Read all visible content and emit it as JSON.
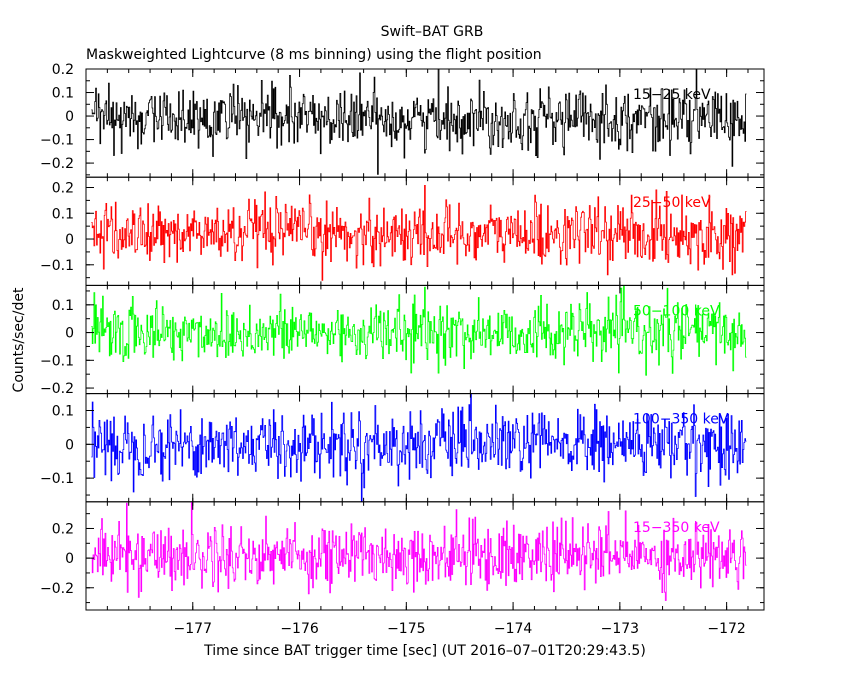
{
  "title": "Swift–BAT GRB",
  "subtitle": "Maskweighted Lightcurve (8 ms binning) using the flight position",
  "xlabel": "Time since BAT trigger time [sec] (UT 2016–07–01T20:29:43.5)",
  "ylabel": "Counts/sec/det",
  "chart_data": {
    "type": "line",
    "xlim": [
      -178.0,
      -171.65
    ],
    "x_ticks": [
      -177,
      -176,
      -175,
      -174,
      -173,
      -172
    ],
    "x_tick_labels": [
      "−177",
      "−176",
      "−175",
      "−174",
      "−173",
      "−172"
    ],
    "x_start": -177.95,
    "x_end": -171.82,
    "bin_width": 0.008,
    "series": [
      {
        "name": "15−25 keV",
        "color": "#000000",
        "ylim": [
          -0.26,
          0.2
        ],
        "y_ticks": [
          0.2,
          0.1,
          0,
          -0.1,
          -0.2
        ],
        "y_tick_labels": [
          "0.2",
          "0.1",
          "0",
          "−0.1",
          "−0.2"
        ],
        "noise_sigma": 0.065,
        "noise_offset": -0.01
      },
      {
        "name": "25−50 keV",
        "color": "#ff0000",
        "ylim": [
          -0.18,
          0.24
        ],
        "y_ticks": [
          0.2,
          0.1,
          0,
          -0.1
        ],
        "y_tick_labels": [
          "0.2",
          "0.1",
          "0",
          "−0.1"
        ],
        "noise_sigma": 0.06,
        "noise_offset": 0.02
      },
      {
        "name": "50−100 keV",
        "color": "#00ff00",
        "ylim": [
          -0.22,
          0.17
        ],
        "y_ticks": [
          0.1,
          0,
          -0.1,
          -0.2
        ],
        "y_tick_labels": [
          "0.1",
          "0",
          "−0.1",
          "−0.2"
        ],
        "noise_sigma": 0.055,
        "noise_offset": 0.0
      },
      {
        "name": "100−350 keV",
        "color": "#0000ff",
        "ylim": [
          -0.17,
          0.15
        ],
        "y_ticks": [
          0.1,
          0,
          -0.1
        ],
        "y_tick_labels": [
          "0.1",
          "0",
          "−0.1"
        ],
        "noise_sigma": 0.05,
        "noise_offset": 0.0
      },
      {
        "name": "15−350 keV",
        "color": "#ff00ff",
        "ylim": [
          -0.35,
          0.38
        ],
        "y_ticks": [
          0.2,
          0,
          -0.2
        ],
        "y_tick_labels": [
          "0.2",
          "0",
          "−0.2"
        ],
        "noise_sigma": 0.11,
        "noise_offset": 0.02
      }
    ]
  }
}
